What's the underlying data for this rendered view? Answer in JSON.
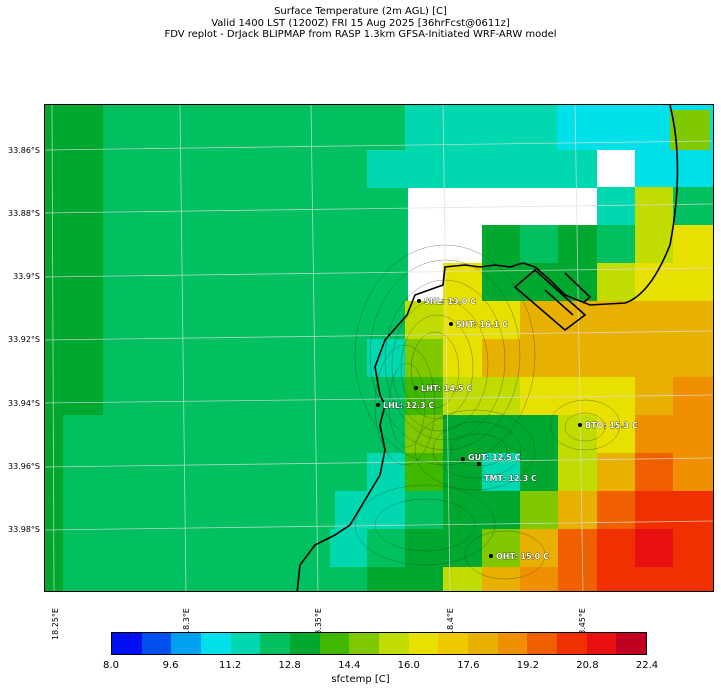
{
  "title": {
    "line1": "Surface Temperature (2m AGL) [C]",
    "line2": "Valid 1400 LST (1200Z) FRI 15 Aug 2025 [36hrFcst@0611z]",
    "line3": "FDV replot - DrJack BLIPMAP from RASP 1.3km GFSA-Initiated WRF-ARW model"
  },
  "lat_labels": [
    "33.86°S",
    "33.88°S",
    "33.9°S",
    "33.92°S",
    "33.94°S",
    "33.96°S",
    "33.98°S"
  ],
  "lon_labels": [
    "18.25°E",
    "18.3°E",
    "18.35°E",
    "18.4°E",
    "18.45°E"
  ],
  "stations": [
    {
      "label": "SHL: 13.0 C"
    },
    {
      "label": "SHT: 16.1 C"
    },
    {
      "label": "LHT: 14.5 C"
    },
    {
      "label": "LHL: 12.3 C"
    },
    {
      "label": "BTO: 15.3 C"
    },
    {
      "label": "GUT: 12.5 C"
    },
    {
      "label": "TMT: 12.3 C"
    },
    {
      "label": "OHT: 15.0 C"
    }
  ],
  "colorbar": {
    "label": "sfctemp [C]",
    "ticks": [
      "8.0",
      "9.6",
      "11.2",
      "12.8",
      "14.4",
      "16.0",
      "17.6",
      "19.2",
      "20.8",
      "22.4"
    ],
    "colors": [
      "#0010f0",
      "#0050f0",
      "#00a0f0",
      "#00e0e8",
      "#00d8b0",
      "#00c060",
      "#00a830",
      "#40b800",
      "#80c800",
      "#c0dc00",
      "#e8e000",
      "#f0c800",
      "#e8b000",
      "#f09000",
      "#f06000",
      "#f03000",
      "#e81010",
      "#c00020"
    ]
  },
  "map_colors": {
    "c12": "#00c060",
    "c11": "#00d8b0",
    "c10": "#00e0e8",
    "c13": "#00a830",
    "c14": "#40b800",
    "c15": "#80c800",
    "c16": "#c0dc00",
    "c17": "#e8e000",
    "c18": "#e8b000",
    "c19": "#f09000",
    "c20": "#f06000",
    "c21": "#f03000",
    "c22": "#e81010"
  }
}
